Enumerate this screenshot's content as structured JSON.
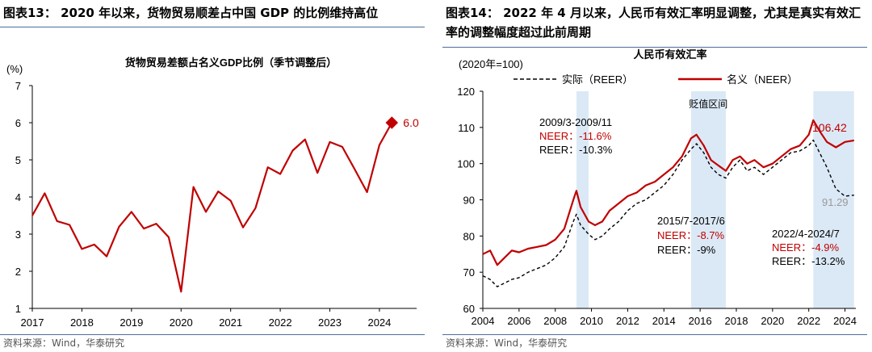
{
  "left": {
    "title": "图表13：  2020 年以来，货物贸易顺差占中国 GDP 的比例维持高位",
    "source": "资料来源：Wind，华泰研究"
  },
  "right": {
    "title": "图表14：  2022 年 4 月以来，人民币有效汇率明显调整，尤其是真实有效汇率的调整幅度超过此前周期",
    "source": "资料来源：Wind，华泰研究"
  },
  "chart_data": [
    {
      "type": "line",
      "title": "货物贸易差额占名义GDP比例（季节调整后）",
      "ylabel": "(%)",
      "xlabel": "",
      "ylim": [
        1,
        7
      ],
      "yticks": [
        "1",
        "2",
        "3",
        "4",
        "5",
        "6",
        "7"
      ],
      "xlim": [
        2017.0,
        2024.75
      ],
      "xticks": [
        "2017",
        "2018",
        "2019",
        "2020",
        "2021",
        "2022",
        "2023",
        "2024"
      ],
      "grid": false,
      "color": "#c00000",
      "x": [
        2017.0,
        2017.25,
        2017.5,
        2017.75,
        2018.0,
        2018.25,
        2018.5,
        2018.75,
        2019.0,
        2019.25,
        2019.5,
        2019.75,
        2020.0,
        2020.25,
        2020.5,
        2020.75,
        2021.0,
        2021.25,
        2021.5,
        2021.75,
        2022.0,
        2022.25,
        2022.5,
        2022.75,
        2023.0,
        2023.25,
        2023.5,
        2023.75,
        2024.0,
        2024.25
      ],
      "y": [
        3.5,
        4.1,
        3.35,
        3.25,
        2.6,
        2.72,
        2.4,
        3.2,
        3.6,
        3.15,
        3.28,
        2.92,
        1.45,
        4.27,
        3.6,
        4.15,
        3.9,
        3.18,
        3.7,
        4.8,
        4.62,
        5.25,
        5.55,
        4.65,
        5.48,
        5.35,
        4.75,
        4.13,
        5.4,
        6.0
      ],
      "annotation": {
        "text": "6.0",
        "x": 2024.25,
        "y": 6.0
      }
    },
    {
      "type": "line",
      "title": "人民币有效汇率",
      "ylabel": "(2020年=100)",
      "ylim": [
        60,
        120
      ],
      "yticks": [
        "60",
        "70",
        "80",
        "90",
        "100",
        "110",
        "120"
      ],
      "xlim": [
        2004,
        2024.6
      ],
      "xticks": [
        "2004",
        "2006",
        "2008",
        "2010",
        "2012",
        "2014",
        "2016",
        "2018",
        "2020",
        "2022",
        "2024"
      ],
      "legend_position": "top",
      "shaded_label": "贬值区间",
      "shaded_periods": [
        [
          2009.17,
          2009.84
        ],
        [
          2015.5,
          2017.42
        ],
        [
          2022.25,
          2024.5
        ]
      ],
      "series": [
        {
          "name": "实际（REER）",
          "style": "dashed",
          "color": "#000000",
          "x": [
            2004.0,
            2004.4,
            2004.8,
            2005.2,
            2005.6,
            2006.0,
            2006.5,
            2007.0,
            2007.5,
            2008.0,
            2008.5,
            2009.0,
            2009.17,
            2009.4,
            2009.84,
            2010.2,
            2010.6,
            2011.0,
            2011.5,
            2012.0,
            2012.5,
            2013.0,
            2013.5,
            2014.0,
            2014.5,
            2015.0,
            2015.5,
            2015.8,
            2016.2,
            2016.6,
            2017.0,
            2017.42,
            2017.8,
            2018.2,
            2018.6,
            2019.0,
            2019.5,
            2020.0,
            2020.5,
            2021.0,
            2021.5,
            2022.0,
            2022.25,
            2022.6,
            2023.0,
            2023.5,
            2024.0,
            2024.5
          ],
          "y": [
            69,
            68,
            66,
            67,
            68,
            68.5,
            70,
            71,
            72,
            74,
            77,
            84,
            86,
            83,
            80.5,
            79,
            80,
            82,
            84,
            87,
            89,
            90,
            92,
            94,
            97,
            101,
            104,
            105.5,
            103,
            99,
            97,
            96,
            99,
            101,
            98,
            99,
            97,
            99,
            101,
            103,
            103.5,
            105,
            106.5,
            103,
            99,
            93,
            91,
            91.29
          ]
        },
        {
          "name": "名义（NEER）",
          "style": "solid",
          "color": "#c00000",
          "x": [
            2004.0,
            2004.4,
            2004.8,
            2005.2,
            2005.6,
            2006.0,
            2006.5,
            2007.0,
            2007.5,
            2008.0,
            2008.5,
            2009.0,
            2009.17,
            2009.4,
            2009.84,
            2010.2,
            2010.6,
            2011.0,
            2011.5,
            2012.0,
            2012.5,
            2013.0,
            2013.5,
            2014.0,
            2014.5,
            2015.0,
            2015.5,
            2015.8,
            2016.2,
            2016.6,
            2017.0,
            2017.42,
            2017.8,
            2018.2,
            2018.6,
            2019.0,
            2019.5,
            2020.0,
            2020.5,
            2021.0,
            2021.5,
            2022.0,
            2022.25,
            2022.6,
            2023.0,
            2023.5,
            2024.0,
            2024.5
          ],
          "y": [
            75,
            76,
            72,
            74,
            76,
            75.5,
            76.5,
            77,
            77.5,
            79,
            82,
            90,
            92.5,
            88,
            84,
            83,
            84,
            87,
            89,
            91,
            92,
            94,
            95,
            97,
            99,
            102,
            107,
            108,
            105,
            101,
            99.5,
            98,
            101,
            102,
            100,
            101,
            99,
            100,
            102,
            104,
            105,
            108,
            112,
            109,
            106,
            104.5,
            106,
            106.42
          ]
        }
      ],
      "annotations": [
        {
          "text": "2009/3-2009/11",
          "color": "#000000"
        },
        {
          "text": "NEER：-11.6%",
          "color": "#c00000"
        },
        {
          "text": "REER：-10.3%",
          "color": "#000000"
        },
        {
          "text": "2015/7-2017/6",
          "color": "#000000"
        },
        {
          "text": "NEER：-8.7%",
          "color": "#c00000"
        },
        {
          "text": "REER：-9%",
          "color": "#000000"
        },
        {
          "text": "2022/4-2024/7",
          "color": "#000000"
        },
        {
          "text": "NEER：-4.9%",
          "color": "#c00000"
        },
        {
          "text": "REER：-13.2%",
          "color": "#000000"
        }
      ],
      "end_labels": [
        {
          "text": "106.42",
          "color": "#c00000"
        },
        {
          "text": "91.29",
          "color": "#999999"
        }
      ]
    }
  ]
}
